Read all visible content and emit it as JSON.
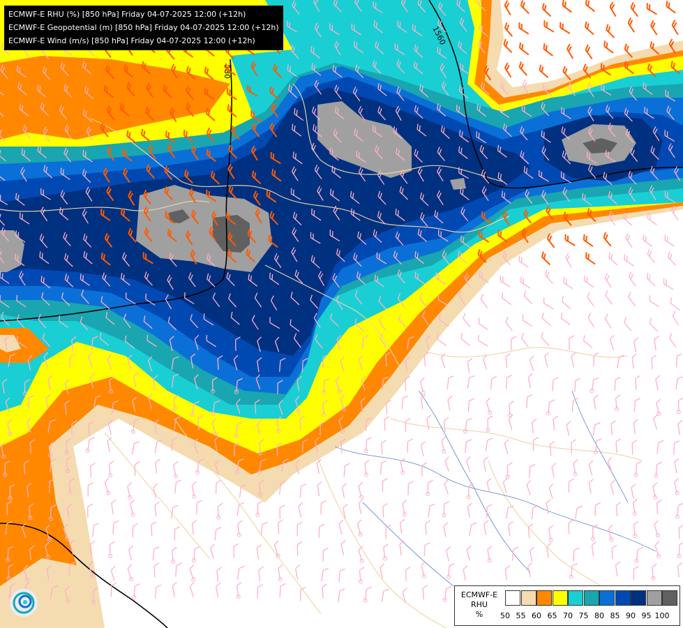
{
  "header": {
    "line1": "ECMWF-E RHU (%) [850 hPa] Friday 04-07-2025 12:00 (+12h)",
    "line2": "ECMWF-E Geopotential (m) [850 hPa] Friday 04-07-2025 12:00 (+12h)",
    "line3": "ECMWF-E Wind (m/s) [850 hPa] Friday 04-07-2025 12:00 (+12h)"
  },
  "contours": {
    "label_a": "1560",
    "label_b": "580"
  },
  "legend": {
    "title_line1": "ECMWF-E",
    "title_line2": "RHU",
    "unit": "%",
    "ticks": [
      "50",
      "55",
      "60",
      "65",
      "70",
      "75",
      "80",
      "85",
      "90",
      "95",
      "100"
    ],
    "colors": [
      "#ffffff",
      "#f5dbb0",
      "#ff8800",
      "#ffff00",
      "#19cfd4",
      "#19a6b0",
      "#0a70d8",
      "#0049b3",
      "#003080",
      "#a0a0a0",
      "#606060"
    ]
  },
  "logo": {
    "icon": "ecmwf-swirl-icon"
  }
}
